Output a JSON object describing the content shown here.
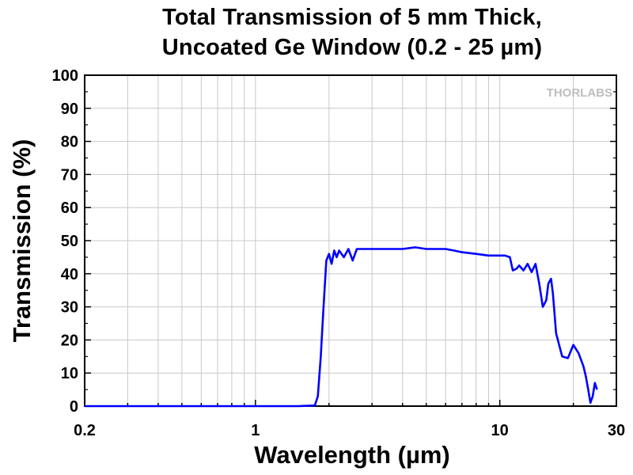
{
  "chart_data": {
    "type": "line",
    "title": "Total Transmission of 5 mm Thick,",
    "subtitle": "Uncoated Ge Window (0.2 - 25 µm)",
    "xlabel": "Wavelength (µm)",
    "ylabel": "Transmission (%)",
    "x_scale": "log",
    "xlim": [
      0.2,
      30
    ],
    "ylim": [
      0,
      100
    ],
    "x_ticks": [
      0.2,
      1,
      10,
      30
    ],
    "x_tick_labels": [
      "0.2",
      "1",
      "10",
      "30"
    ],
    "y_ticks": [
      0,
      10,
      20,
      30,
      40,
      50,
      60,
      70,
      80,
      90,
      100
    ],
    "y_tick_labels": [
      "0",
      "10",
      "20",
      "30",
      "40",
      "50",
      "60",
      "70",
      "80",
      "90",
      "100"
    ],
    "grid": true,
    "legend": "none",
    "line_color": "#0000ff",
    "watermark": "THORLABS",
    "series": [
      {
        "x": [
          0.2,
          0.5,
          1.0,
          1.5,
          1.75,
          1.8,
          1.85,
          1.9,
          1.95,
          2.0,
          2.05,
          2.1,
          2.15,
          2.2,
          2.3,
          2.4,
          2.5,
          2.6,
          2.8,
          3.0,
          3.5,
          4.0,
          4.5,
          5.0,
          5.5,
          6.0,
          6.5,
          7.0,
          8.0,
          9.0,
          10.0,
          10.5,
          11.0,
          11.3,
          11.7,
          12.0,
          12.5,
          13.0,
          13.5,
          14.0,
          14.5,
          15.0,
          15.5,
          15.8,
          16.2,
          16.5,
          17.0,
          18.0,
          19.0,
          20.0,
          21.0,
          22.0,
          22.5,
          23.0,
          23.5,
          24.0,
          24.5,
          25.0
        ],
        "y": [
          0,
          0,
          0,
          0,
          0.2,
          3,
          15,
          30,
          44,
          46,
          43,
          47,
          45,
          47,
          45,
          47.5,
          44,
          47.5,
          47.5,
          47.5,
          47.5,
          47.5,
          48,
          47.5,
          47.5,
          47.5,
          47,
          46.5,
          46,
          45.5,
          45.5,
          45.5,
          45,
          41,
          41.5,
          42.5,
          41,
          43,
          40.5,
          43,
          37,
          30,
          32,
          37,
          38.5,
          34,
          22,
          15,
          14.5,
          18.5,
          16,
          12,
          9,
          5,
          1,
          3,
          7,
          5
        ]
      }
    ]
  }
}
